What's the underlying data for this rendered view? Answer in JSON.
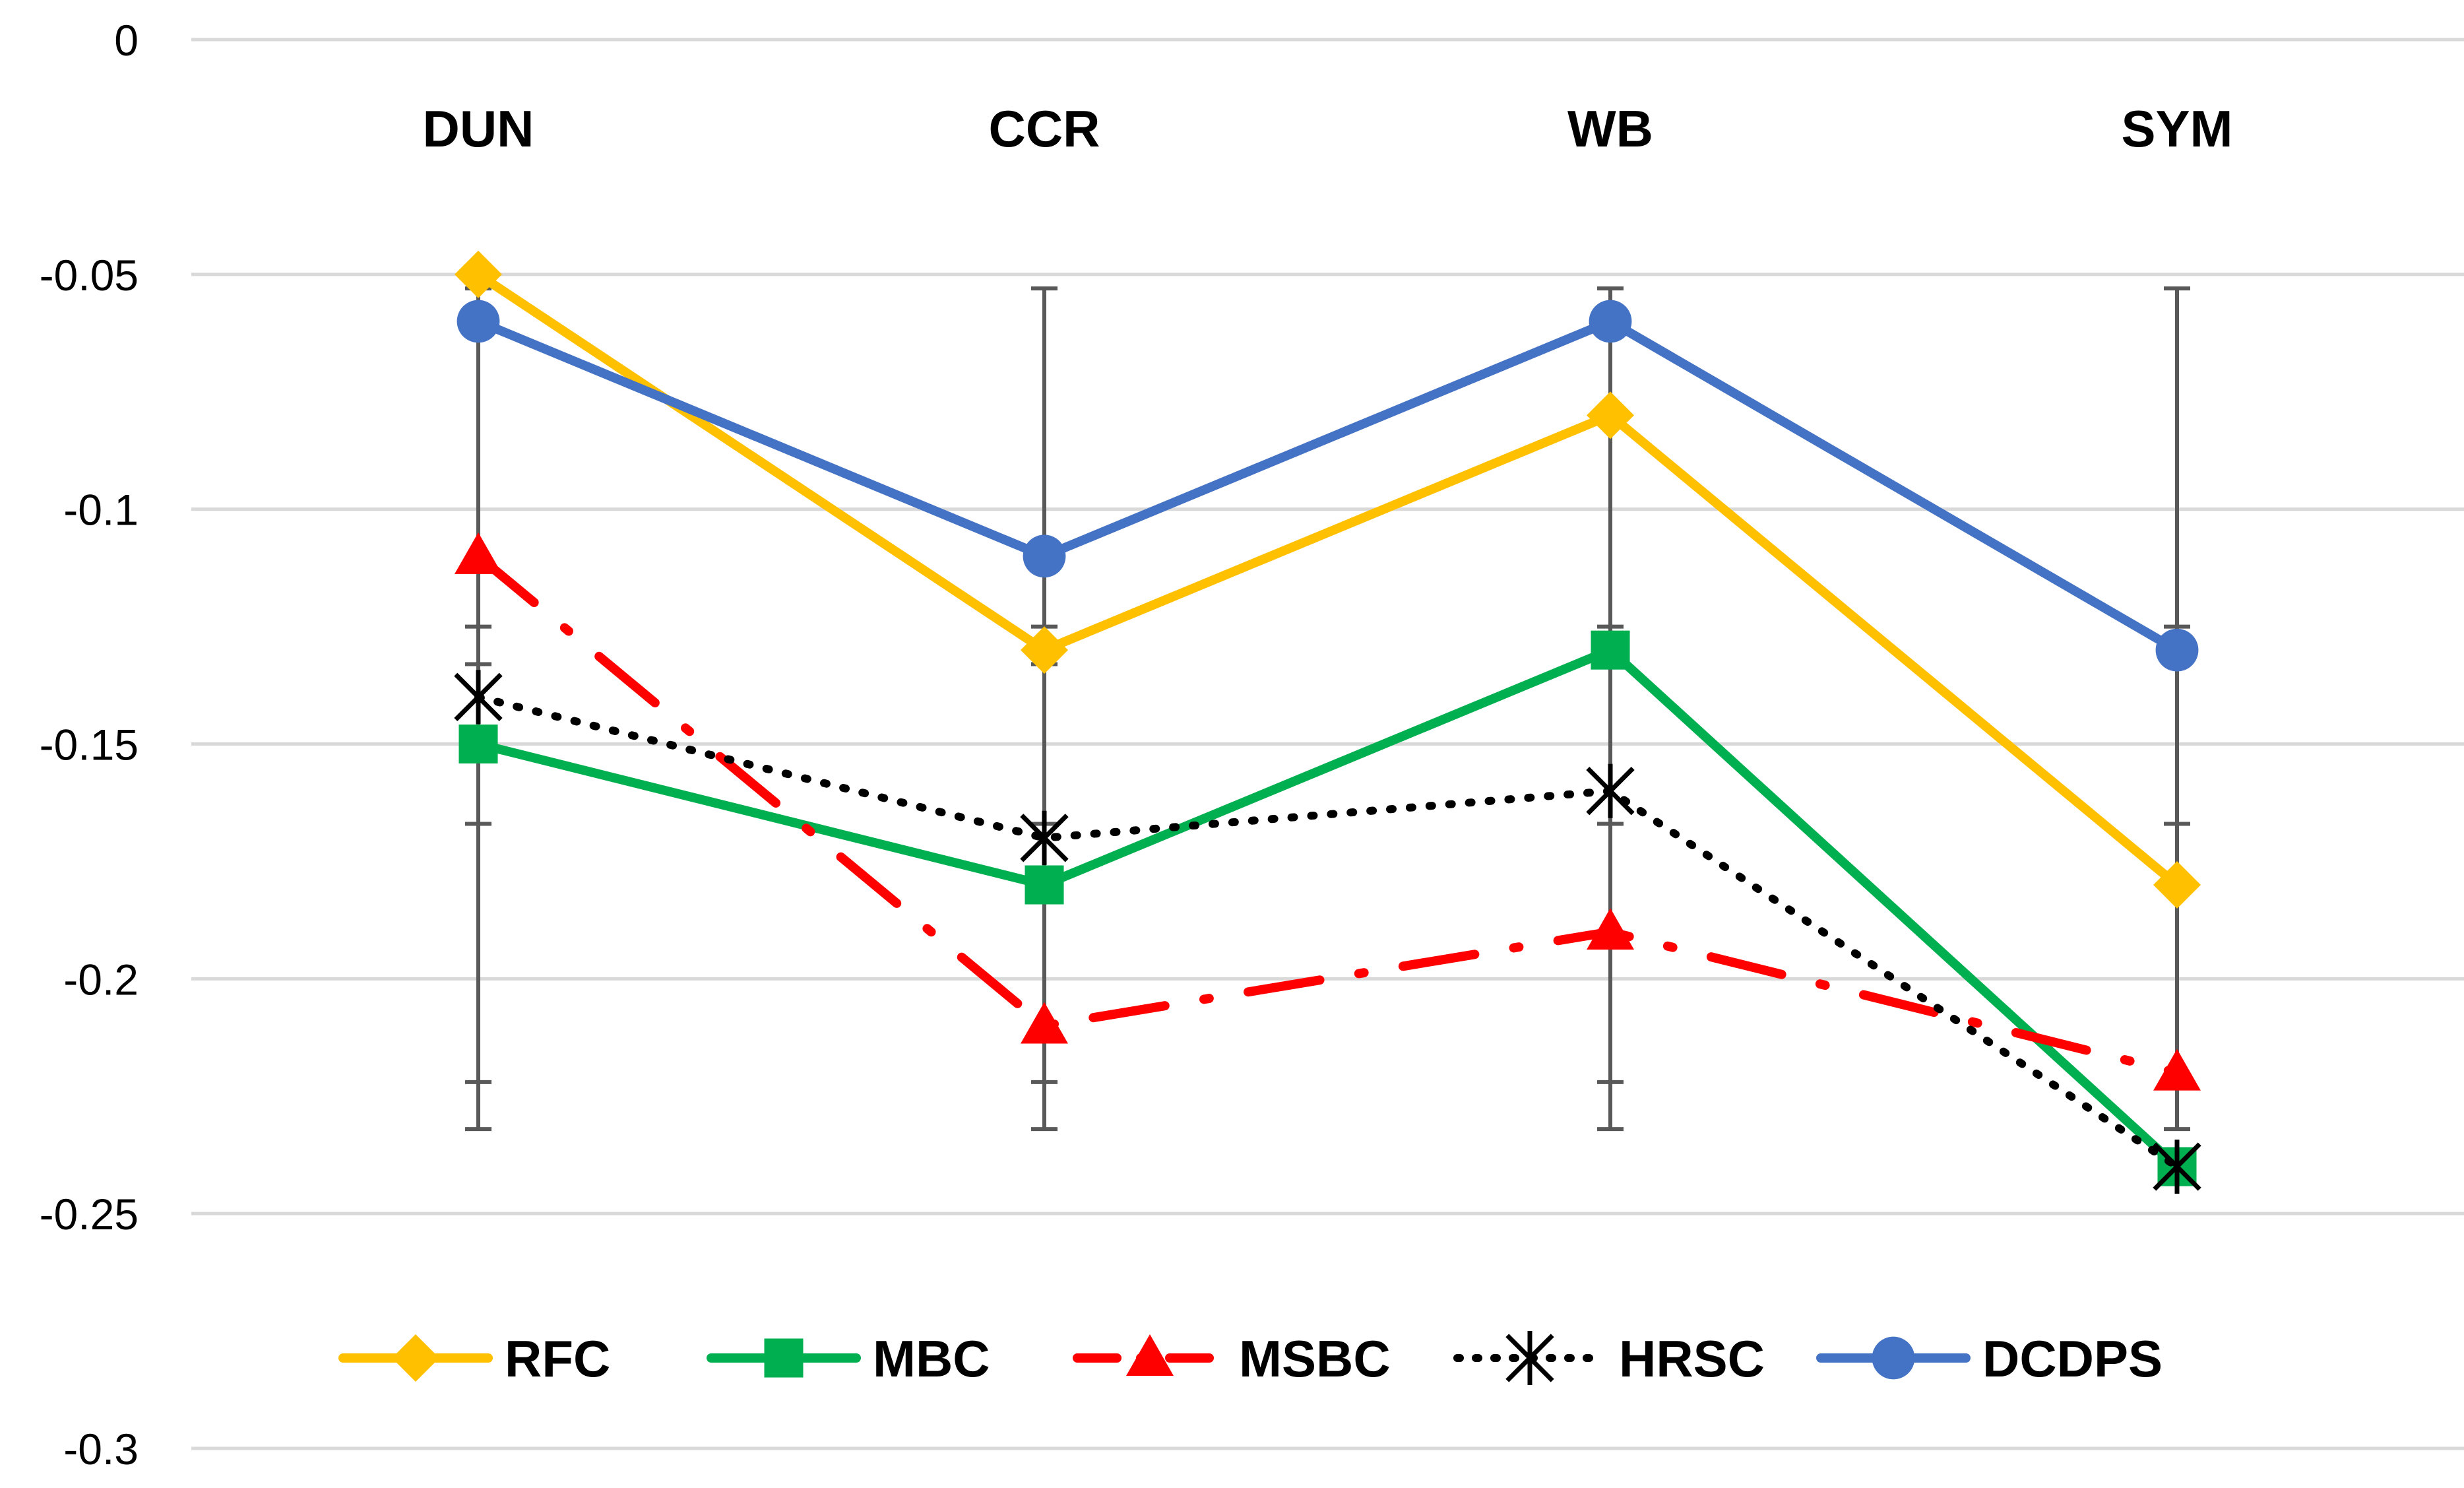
{
  "chart_data": {
    "type": "line",
    "title": "",
    "xlabel": "",
    "ylabel": "",
    "categories": [
      "DUN",
      "CCR",
      "WB",
      "SYM"
    ],
    "ylim": [
      -0.3,
      0
    ],
    "yticks": [
      0,
      -0.05,
      -0.1,
      -0.15,
      -0.2,
      -0.25,
      -0.3
    ],
    "ytick_labels": [
      "0",
      "-0.05",
      "-0.1",
      "-0.15",
      "-0.2",
      "-0.25",
      "-0.3"
    ],
    "grid": true,
    "legend_position": "bottom",
    "error_bars": {
      "description": "shared vertical error bars at each category",
      "outer": [
        -0.053,
        -0.232
      ],
      "inner": [
        -0.125,
        -0.222
      ],
      "inner2": [
        -0.133,
        -0.167
      ]
    },
    "series": [
      {
        "name": "RFC",
        "color": "#FFC000",
        "dash": "solid",
        "marker": "diamond",
        "values": [
          -0.05,
          -0.13,
          -0.08,
          -0.18
        ]
      },
      {
        "name": "MBC",
        "color": "#00B050",
        "dash": "solid",
        "marker": "square",
        "values": [
          -0.15,
          -0.18,
          -0.13,
          -0.24
        ]
      },
      {
        "name": "MSBC",
        "color": "#FF0000",
        "dash": "dashdot",
        "marker": "triangle",
        "values": [
          -0.11,
          -0.21,
          -0.19,
          -0.22
        ]
      },
      {
        "name": "HRSC",
        "color": "#000000",
        "dash": "dot",
        "marker": "star",
        "values": [
          -0.14,
          -0.17,
          -0.16,
          -0.24
        ]
      },
      {
        "name": "DCDPS",
        "color": "#4472C4",
        "dash": "solid",
        "marker": "circle",
        "values": [
          -0.06,
          -0.11,
          -0.06,
          -0.13
        ]
      }
    ]
  }
}
